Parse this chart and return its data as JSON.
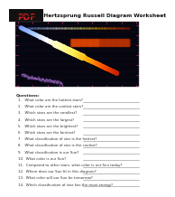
{
  "title": "Lesson 2: Hertzsprung Russell Diagram Worksheet",
  "background_color": "#ffffff",
  "questions_label": "Questions:",
  "questions": [
    "1.   What color are the hottest stars?",
    "2.   What color are the coolest stars?",
    "3.   Which stars are the smallest?",
    "4.   Which stars are the largest?",
    "5.   Which stars are the brightest?",
    "6.   Which stars are the faintest?",
    "7.   What classification of star is the hottest?",
    "8.   What classification of star is the coolest?",
    "9.   What classification is our Sun?",
    "10.  What color is our Sun?",
    "11.  Compared to other stars, what color is our Sun today?",
    "12.  Where does our Sun fit in this diagram?",
    "13.  What color will our Sun be tomorrow?",
    "14.  Which classification of star has the most energy?"
  ],
  "hr_bg": "#060610",
  "ms_colors": [
    "#7799ff",
    "#aaccff",
    "#ffffff",
    "#ffffaa",
    "#ffee55",
    "#ffaa00",
    "#ff5500",
    "#cc2200"
  ],
  "giant_color": "#cc4400",
  "wd_color": "#cc88ff",
  "axis_color": "#ff44aa",
  "question_fontsize": 2.8,
  "questions_label_fontsize": 3.2,
  "title_fontsize": 4.2,
  "pdf_fontsize": 6.5
}
